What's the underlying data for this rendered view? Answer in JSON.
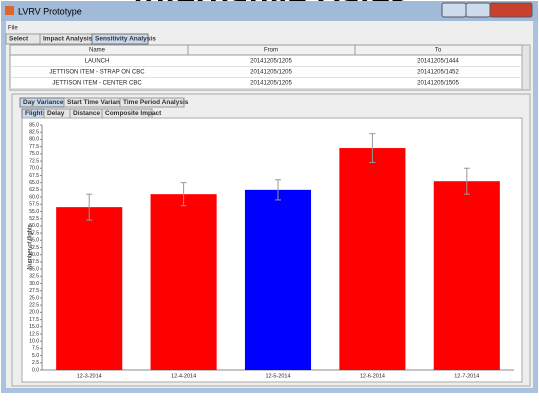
{
  "slide_title": "Alternative Dates",
  "window": {
    "title": "LVRV Prototype"
  },
  "menu": [
    "File"
  ],
  "main_tabs": [
    "Select",
    "Impact Analysis",
    "Sensitivity Analysis"
  ],
  "table": {
    "columns": [
      "Name",
      "From",
      "To"
    ],
    "rows": [
      [
        "LAUNCH",
        "20141205/1205",
        "20141205/1444"
      ],
      [
        "JETTISON ITEM - STRAP ON CBC",
        "20141205/1205",
        "20141205/1452"
      ],
      [
        "JETTISON ITEM - CENTER CBC",
        "20141205/1205",
        "20141205/1505"
      ]
    ]
  },
  "analysis_tabs": [
    "Day Variance",
    "Start Time Variance",
    "Time Period Analysis"
  ],
  "metric_tabs": [
    "Flights",
    "Delay",
    "Distance",
    "Composite Impact"
  ],
  "chart_data": {
    "type": "bar",
    "y_label": "Number of flights",
    "categories": [
      "12-3-2014",
      "12-4-2014",
      "12-5-2014",
      "12-6-2014",
      "12-7-2014"
    ],
    "values": [
      56.5,
      61,
      62.5,
      77,
      65.5
    ],
    "errors": [
      4.5,
      4,
      3.5,
      5,
      4.5
    ],
    "colors": [
      "#ff0000",
      "#ff0000",
      "#0000ff",
      "#ff0000",
      "#ff0000"
    ],
    "ylim": [
      0,
      85
    ],
    "yticks": [
      {
        "value": 0,
        "label": "0.0"
      },
      {
        "value": 2.5,
        "label": "2.5"
      },
      {
        "value": 5,
        "label": "5.0"
      },
      {
        "value": 7.5,
        "label": "7.5"
      },
      {
        "value": 10,
        "label": "10.0"
      },
      {
        "value": 12.5,
        "label": "12.5"
      },
      {
        "value": 15,
        "label": "15.0"
      },
      {
        "value": 17.5,
        "label": "17.5"
      },
      {
        "value": 20,
        "label": "20.0"
      },
      {
        "value": 22.5,
        "label": "22.5"
      },
      {
        "value": 25,
        "label": "25.0"
      },
      {
        "value": 27.5,
        "label": "27.5"
      },
      {
        "value": 30,
        "label": "30.0"
      },
      {
        "value": 32.5,
        "label": "32.5"
      },
      {
        "value": 35,
        "label": "35.0"
      },
      {
        "value": 37.5,
        "label": "37.5"
      },
      {
        "value": 40,
        "label": "40.0"
      },
      {
        "value": 42.5,
        "label": "42.5"
      },
      {
        "value": 45,
        "label": "45.0"
      },
      {
        "value": 47.5,
        "label": "47.5"
      },
      {
        "value": 50,
        "label": "50.0"
      },
      {
        "value": 52.5,
        "label": "52.5"
      },
      {
        "value": 55,
        "label": "55.0"
      },
      {
        "value": 57.5,
        "label": "57.5"
      },
      {
        "value": 60,
        "label": "60.0"
      },
      {
        "value": 62.5,
        "label": "62.5"
      },
      {
        "value": 65,
        "label": "65.0"
      },
      {
        "value": 67.5,
        "label": "67.5"
      },
      {
        "value": 70,
        "label": "70.0"
      },
      {
        "value": 72.5,
        "label": "72.5"
      },
      {
        "value": 75,
        "label": "75.0"
      },
      {
        "value": 77.5,
        "label": "77.5"
      },
      {
        "value": 80,
        "label": "80.0"
      },
      {
        "value": 82.5,
        "label": "82.5"
      },
      {
        "value": 85,
        "label": "85.0"
      }
    ],
    "grid": false
  }
}
